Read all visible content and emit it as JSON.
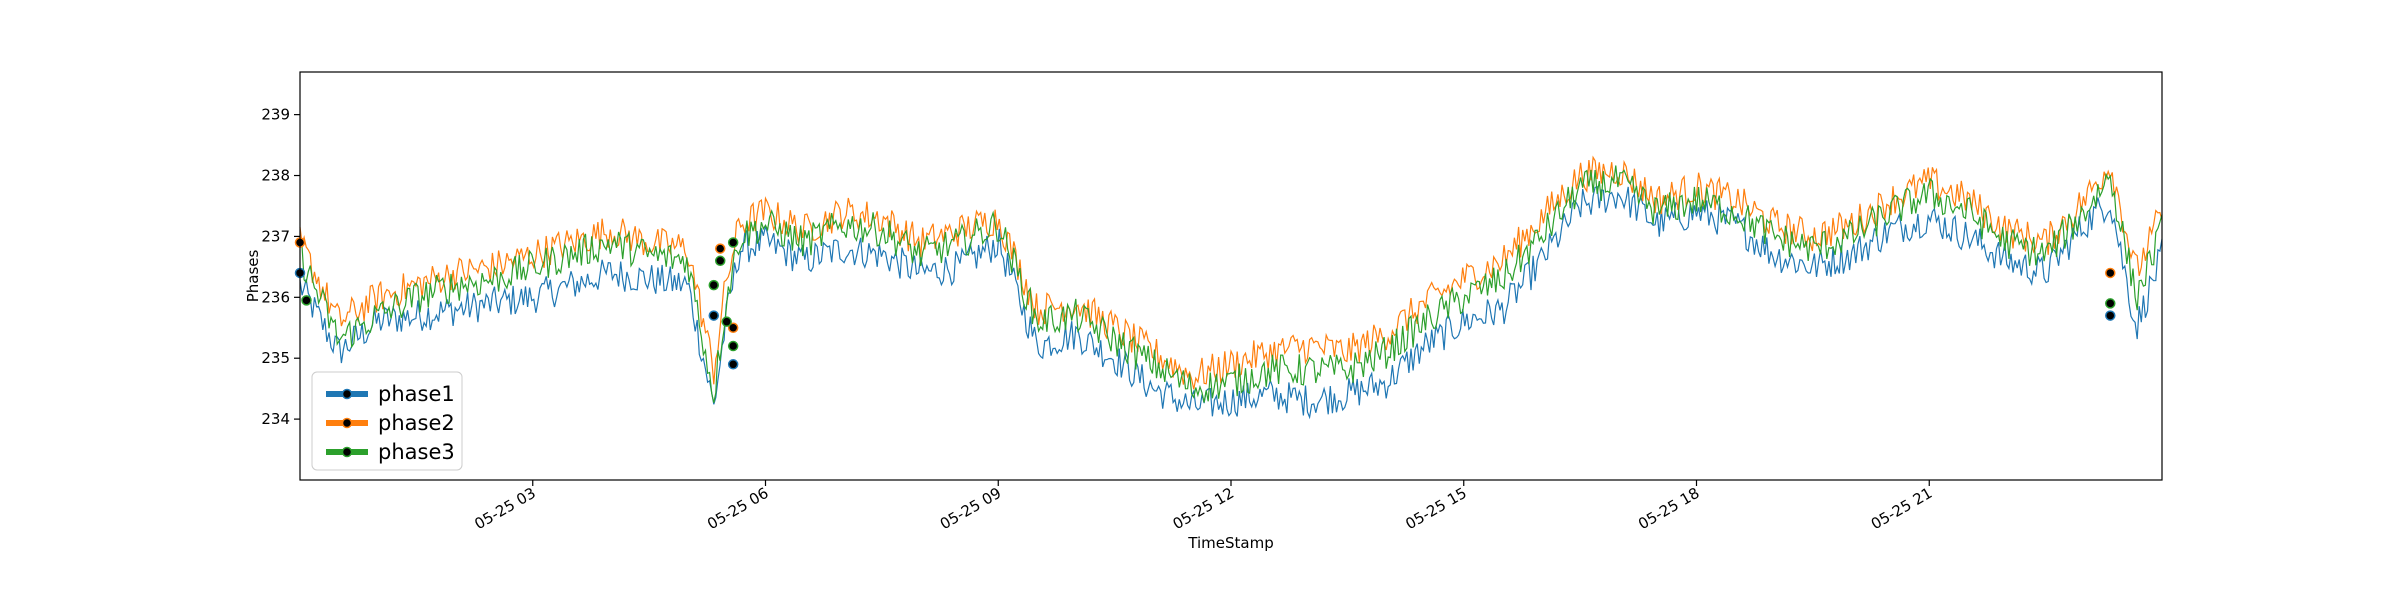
{
  "chart_data": {
    "type": "line",
    "title": "",
    "xlabel": "TimeStamp",
    "ylabel": "Phases",
    "x_ticks": [
      "05-25 03",
      "05-25 06",
      "05-25 09",
      "05-25 12",
      "05-25 15",
      "05-25 18",
      "05-25 21"
    ],
    "y_ticks": [
      "234",
      "235",
      "236",
      "237",
      "238",
      "239"
    ],
    "xlim": [
      "05-25 00:00",
      "05-26 00:00"
    ],
    "ylim": [
      233.0,
      239.7
    ],
    "grid": false,
    "legend_position": "lower-left",
    "x": [
      "05-25 00:00",
      "05-25 00:30",
      "05-25 01:00",
      "05-25 01:30",
      "05-25 02:00",
      "05-25 02:30",
      "05-25 03:00",
      "05-25 03:30",
      "05-25 04:00",
      "05-25 04:30",
      "05-25 05:00",
      "05-25 05:20",
      "05-25 05:30",
      "05-25 05:40",
      "05-25 06:00",
      "05-25 06:30",
      "05-25 07:00",
      "05-25 07:30",
      "05-25 08:00",
      "05-25 08:30",
      "05-25 09:00",
      "05-25 09:30",
      "05-25 10:00",
      "05-25 10:30",
      "05-25 11:00",
      "05-25 11:30",
      "05-25 12:00",
      "05-25 12:30",
      "05-25 13:00",
      "05-25 13:30",
      "05-25 14:00",
      "05-25 14:30",
      "05-25 15:00",
      "05-25 15:30",
      "05-25 16:00",
      "05-25 16:30",
      "05-25 17:00",
      "05-25 17:30",
      "05-25 18:00",
      "05-25 18:30",
      "05-25 19:00",
      "05-25 19:30",
      "05-25 20:00",
      "05-25 20:30",
      "05-25 21:00",
      "05-25 21:30",
      "05-25 22:00",
      "05-25 22:30",
      "05-25 23:00",
      "05-25 23:20",
      "05-25 23:40",
      "05-26 00:00"
    ],
    "series": [
      {
        "name": "phase1",
        "color": "#1f77b4",
        "values": [
          236.2,
          235.1,
          235.6,
          235.7,
          235.8,
          235.9,
          236.0,
          236.2,
          236.4,
          236.3,
          236.2,
          234.2,
          235.7,
          236.8,
          236.9,
          236.6,
          236.8,
          236.7,
          236.4,
          236.5,
          236.9,
          235.2,
          235.4,
          235.0,
          234.5,
          234.2,
          234.3,
          234.4,
          234.3,
          234.4,
          234.6,
          235.2,
          235.6,
          235.8,
          236.6,
          237.5,
          237.7,
          237.2,
          237.4,
          237.2,
          236.7,
          236.5,
          236.7,
          237.1,
          237.3,
          237.0,
          236.6,
          236.4,
          237.2,
          237.6,
          235.5,
          236.7
        ]
      },
      {
        "name": "phase2",
        "color": "#ff7f0e",
        "values": [
          236.9,
          235.6,
          236.0,
          236.2,
          236.4,
          236.5,
          236.7,
          236.9,
          237.1,
          236.9,
          236.8,
          234.8,
          236.3,
          237.2,
          237.4,
          237.1,
          237.4,
          237.3,
          236.9,
          237.1,
          237.3,
          235.8,
          235.9,
          235.5,
          235.1,
          234.7,
          234.9,
          235.1,
          235.2,
          235.1,
          235.4,
          235.9,
          236.3,
          236.6,
          237.3,
          238.0,
          238.1,
          237.6,
          237.8,
          237.6,
          237.2,
          237.0,
          237.2,
          237.6,
          237.9,
          237.6,
          237.1,
          236.9,
          237.6,
          238.2,
          236.4,
          237.4
        ]
      },
      {
        "name": "phase3",
        "color": "#2ca02c",
        "values": [
          236.7,
          235.3,
          235.7,
          236.0,
          236.2,
          236.3,
          236.5,
          236.7,
          236.9,
          236.7,
          236.6,
          234.4,
          236.0,
          237.0,
          237.2,
          236.9,
          237.2,
          237.1,
          236.7,
          236.9,
          237.2,
          235.6,
          235.7,
          235.3,
          234.9,
          234.5,
          234.6,
          234.8,
          234.8,
          234.8,
          235.1,
          235.6,
          236.0,
          236.3,
          237.0,
          237.8,
          237.9,
          237.4,
          237.6,
          237.4,
          237.0,
          236.8,
          237.0,
          237.4,
          237.7,
          237.4,
          236.9,
          236.7,
          237.4,
          238.0,
          236.0,
          237.1
        ]
      }
    ],
    "markers": {
      "phase1": [
        [
          "05-25 00:00",
          236.4
        ],
        [
          "05-25 05:20",
          235.7
        ],
        [
          "05-25 05:35",
          234.9
        ],
        [
          "05-25 23:20",
          235.7
        ]
      ],
      "phase2": [
        [
          "05-25 00:00",
          236.9
        ],
        [
          "05-25 05:25",
          236.8
        ],
        [
          "05-25 05:35",
          235.5
        ],
        [
          "05-25 23:20",
          236.4
        ]
      ],
      "phase3": [
        [
          "05-25 00:05",
          235.95
        ],
        [
          "05-25 05:20",
          236.2
        ],
        [
          "05-25 05:25",
          236.6
        ],
        [
          "05-25 05:30",
          235.6
        ],
        [
          "05-25 05:35",
          236.9
        ],
        [
          "05-25 05:35",
          235.2
        ],
        [
          "05-25 23:20",
          235.9
        ]
      ]
    }
  }
}
